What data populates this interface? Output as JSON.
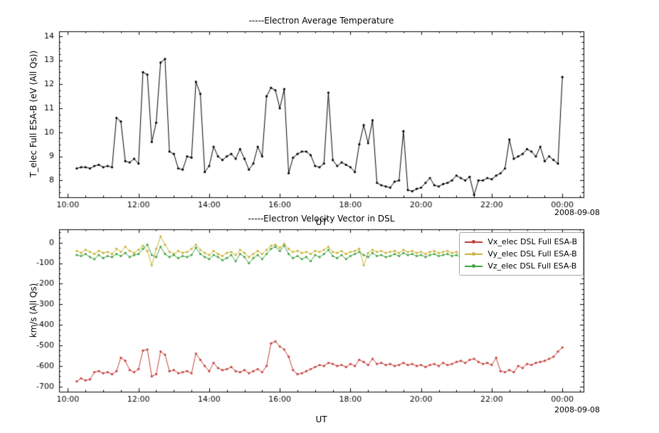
{
  "chart_data": [
    {
      "type": "line",
      "title": "-----Electron Average Temperature",
      "xlabel": "UT",
      "ylabel": "T_elec Full ESA-B (eV (All Qs))",
      "date_label": "2008-09-08",
      "xlim": [
        9.75,
        24.6
      ],
      "ylim": [
        7.3,
        14.2
      ],
      "grid": false,
      "x_ticks": {
        "values": [
          10,
          12,
          14,
          16,
          18,
          20,
          22,
          24
        ],
        "labels": [
          "10:00",
          "12:00",
          "14:00",
          "16:00",
          "18:00",
          "20:00",
          "22:00",
          "00:00"
        ],
        "minor_step": 0.5
      },
      "y_ticks": {
        "values": [
          8,
          9,
          10,
          11,
          12,
          13,
          14
        ],
        "labels": [
          "8",
          "9",
          "10",
          "11",
          "12",
          "13",
          "14"
        ],
        "minor_step": 0.25
      },
      "x_start": 10.25,
      "x_step": 0.125,
      "x_unit": "hours UT",
      "series": [
        {
          "name": "T_elec Full ESA-B",
          "color": "#000000",
          "marker": "circle",
          "values": [
            8.5,
            8.55,
            8.55,
            8.5,
            8.6,
            8.65,
            8.55,
            8.6,
            8.55,
            10.6,
            10.45,
            8.8,
            8.75,
            8.9,
            8.7,
            12.5,
            12.4,
            9.6,
            10.4,
            12.9,
            13.05,
            9.2,
            9.1,
            8.5,
            8.45,
            9.0,
            8.95,
            12.1,
            11.6,
            8.35,
            8.6,
            9.4,
            9.0,
            8.85,
            9.0,
            9.1,
            8.9,
            9.3,
            8.9,
            8.45,
            8.7,
            9.4,
            9.0,
            11.5,
            11.85,
            11.75,
            11.0,
            11.8,
            8.3,
            8.95,
            9.1,
            9.2,
            9.2,
            9.05,
            8.6,
            8.55,
            8.7,
            11.65,
            8.85,
            8.6,
            8.75,
            8.65,
            8.55,
            8.35,
            9.5,
            10.3,
            9.55,
            10.5,
            7.9,
            7.8,
            7.75,
            7.7,
            7.95,
            8.0,
            10.05,
            7.6,
            7.55,
            7.65,
            7.7,
            7.9,
            8.1,
            7.8,
            7.75,
            7.85,
            7.9,
            8.0,
            8.2,
            8.1,
            8.0,
            8.15,
            7.4,
            8.0,
            8.0,
            8.1,
            8.05,
            8.2,
            8.3,
            8.5,
            9.7,
            8.9,
            9.0,
            9.1,
            9.3,
            9.2,
            9.0,
            9.4,
            8.8,
            9.0,
            8.85,
            8.7,
            12.3
          ]
        }
      ]
    },
    {
      "type": "line",
      "title": "-----Electron Velocity Vector in DSL",
      "xlabel": "UT",
      "ylabel": "km/s (All Qs)",
      "date_label": "2008-09-08",
      "xlim": [
        9.75,
        24.6
      ],
      "ylim": [
        -725,
        65
      ],
      "grid": false,
      "legend_position": "upper right",
      "x_ticks": {
        "values": [
          10,
          12,
          14,
          16,
          18,
          20,
          22,
          24
        ],
        "labels": [
          "10:00",
          "12:00",
          "14:00",
          "16:00",
          "18:00",
          "20:00",
          "22:00",
          "00:00"
        ],
        "minor_step": 0.5
      },
      "y_ticks": {
        "values": [
          0,
          -100,
          -200,
          -300,
          -400,
          -500,
          -600,
          -700
        ],
        "labels": [
          "0",
          "-100",
          "-200",
          "-300",
          "-400",
          "-500",
          "-600",
          "-700"
        ],
        "minor_step": 25
      },
      "x_start": 10.25,
      "x_step": 0.125,
      "x_unit": "hours UT",
      "series": [
        {
          "name": "Vx_elec DSL Full ESA-B",
          "color": "#c4413c",
          "marker": "circle",
          "values": [
            -675,
            -660,
            -670,
            -665,
            -630,
            -625,
            -635,
            -630,
            -640,
            -625,
            -560,
            -575,
            -620,
            -630,
            -615,
            -525,
            -520,
            -650,
            -640,
            -530,
            -545,
            -625,
            -620,
            -635,
            -630,
            -625,
            -635,
            -540,
            -570,
            -600,
            -625,
            -585,
            -610,
            -620,
            -615,
            -605,
            -625,
            -630,
            -620,
            -635,
            -625,
            -615,
            -630,
            -600,
            -490,
            -480,
            -505,
            -520,
            -555,
            -620,
            -640,
            -635,
            -625,
            -615,
            -605,
            -595,
            -600,
            -585,
            -590,
            -600,
            -595,
            -605,
            -590,
            -600,
            -570,
            -580,
            -595,
            -565,
            -590,
            -585,
            -595,
            -590,
            -600,
            -595,
            -585,
            -595,
            -590,
            -600,
            -595,
            -605,
            -595,
            -590,
            -600,
            -585,
            -595,
            -590,
            -580,
            -575,
            -585,
            -570,
            -565,
            -580,
            -590,
            -585,
            -595,
            -560,
            -625,
            -630,
            -620,
            -630,
            -600,
            -610,
            -590,
            -595,
            -585,
            -580,
            -575,
            -565,
            -555,
            -530,
            -510
          ]
        },
        {
          "name": "Vy_elec DSL Full ESA-B",
          "color": "#c9b43a",
          "marker": "circle",
          "values": [
            -40,
            -50,
            -35,
            -45,
            -55,
            -40,
            -50,
            -45,
            -55,
            -30,
            -45,
            -20,
            -40,
            -50,
            -35,
            -15,
            -40,
            -110,
            -30,
            30,
            -10,
            -45,
            -55,
            -40,
            -50,
            -45,
            -30,
            -10,
            -35,
            -50,
            -60,
            -40,
            -55,
            -65,
            -50,
            -45,
            -60,
            -35,
            -50,
            -70,
            -55,
            -40,
            -55,
            -35,
            -15,
            -10,
            -25,
            -5,
            -30,
            -45,
            -40,
            -50,
            -45,
            -55,
            -40,
            -45,
            -35,
            -20,
            -45,
            -50,
            -40,
            -55,
            -45,
            -40,
            -30,
            -110,
            -50,
            -35,
            -45,
            -40,
            -50,
            -45,
            -40,
            -50,
            -35,
            -45,
            -40,
            -50,
            -45,
            -55,
            -45,
            -40,
            -50,
            -45,
            -40,
            -50,
            -45,
            -55,
            -45,
            -40,
            -50,
            -45,
            -35,
            -45,
            -55,
            -40,
            -30,
            -45,
            -50,
            -40,
            -45,
            -35,
            -45,
            -40,
            -50,
            -45,
            -40,
            -35,
            -45,
            -40,
            -30
          ]
        },
        {
          "name": "Vz_elec DSL Full ESA-B",
          "color": "#44a544",
          "marker": "circle",
          "values": [
            -60,
            -65,
            -55,
            -70,
            -80,
            -60,
            -75,
            -65,
            -70,
            -55,
            -65,
            -50,
            -70,
            -60,
            -55,
            -30,
            -10,
            -60,
            -70,
            -20,
            -55,
            -70,
            -60,
            -75,
            -65,
            -70,
            -60,
            -25,
            -55,
            -70,
            -80,
            -60,
            -70,
            -85,
            -75,
            -60,
            -90,
            -55,
            -70,
            -100,
            -75,
            -60,
            -80,
            -55,
            -30,
            -20,
            -40,
            -15,
            -55,
            -75,
            -65,
            -80,
            -70,
            -90,
            -60,
            -70,
            -55,
            -35,
            -65,
            -75,
            -60,
            -80,
            -65,
            -55,
            -45,
            -60,
            -70,
            -50,
            -65,
            -60,
            -70,
            -65,
            -55,
            -65,
            -50,
            -60,
            -55,
            -65,
            -60,
            -70,
            -60,
            -55,
            -65,
            -60,
            -55,
            -65,
            -60,
            -70,
            -60,
            -55,
            -65,
            -60,
            -50,
            -60,
            -70,
            -55,
            -45,
            -60,
            -65,
            -55,
            -60,
            -50,
            -60,
            -55,
            -65,
            -60,
            -55,
            -50,
            -60,
            -55,
            -50
          ]
        }
      ]
    }
  ]
}
